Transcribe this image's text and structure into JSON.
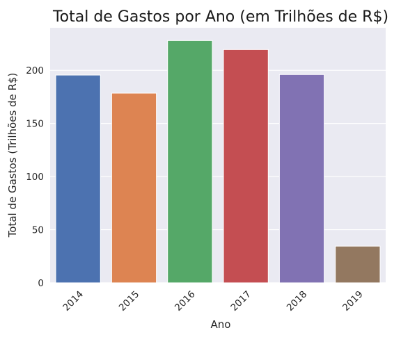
{
  "chart_data": {
    "type": "bar",
    "title": "Total de Gastos por Ano (em Trilhões de R$)",
    "xlabel": "Ano",
    "ylabel": "Total de Gastos (Trilhões de R$)",
    "categories": [
      "2014",
      "2015",
      "2016",
      "2017",
      "2018",
      "2019"
    ],
    "values": [
      195.5,
      178.5,
      228.0,
      219.5,
      196.0,
      34.5
    ],
    "colors": [
      "#4c72b0",
      "#dd8452",
      "#55a868",
      "#c44e52",
      "#8172b3",
      "#937860"
    ],
    "ylim": [
      0,
      240
    ],
    "yticks": [
      "0",
      "50",
      "100",
      "150",
      "200"
    ],
    "grid": true,
    "background": "#eaeaf2",
    "legend": "none"
  }
}
